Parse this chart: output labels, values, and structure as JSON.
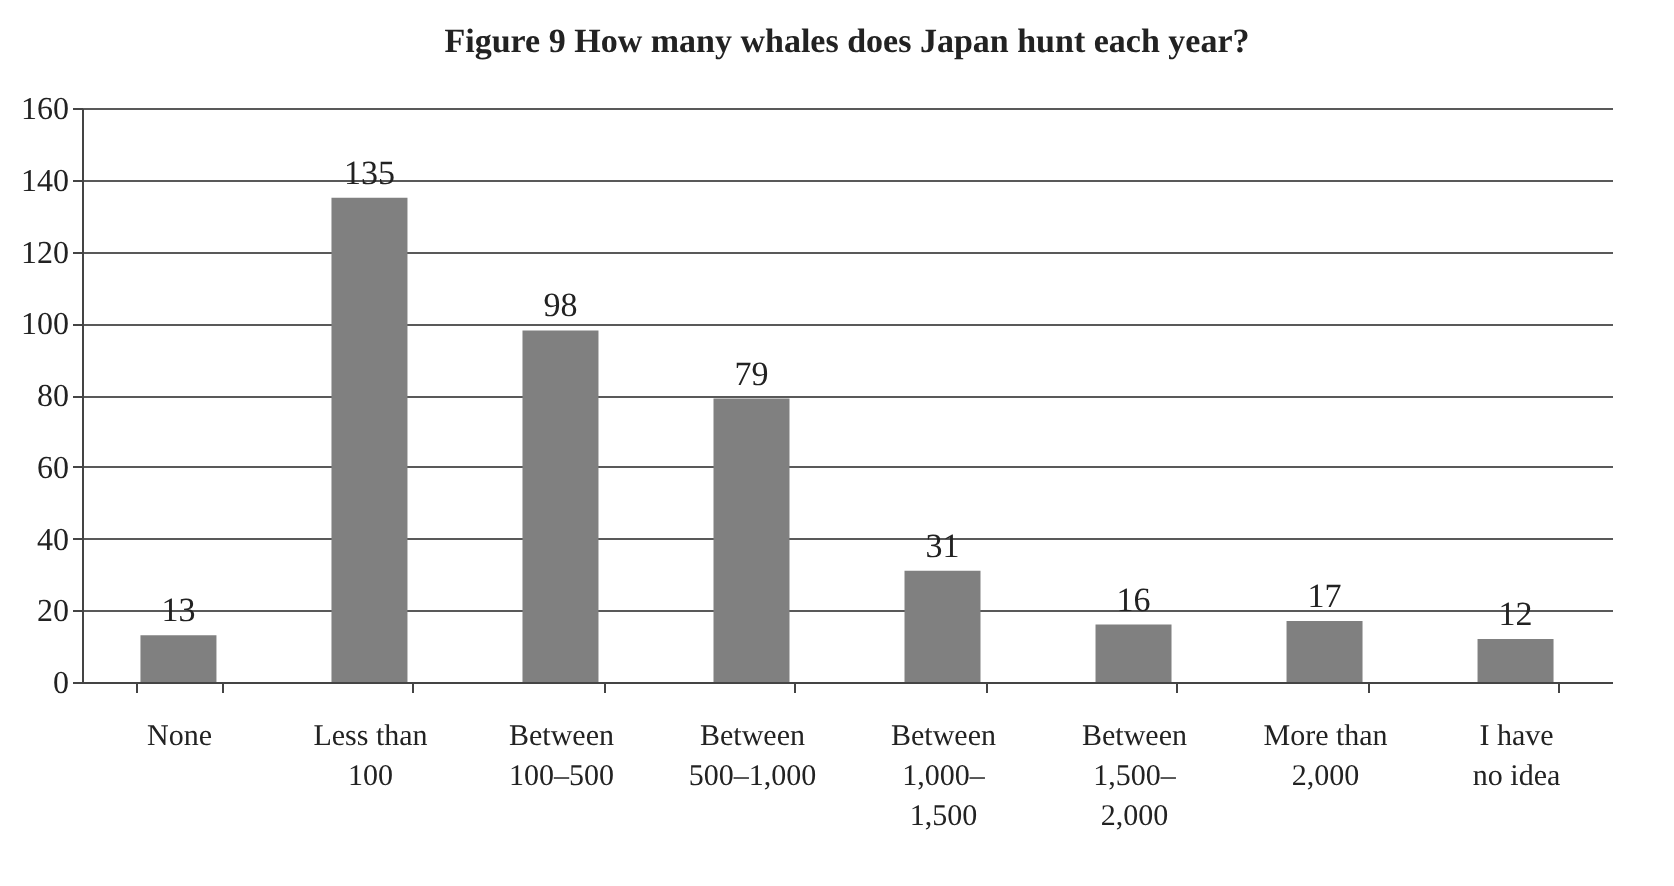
{
  "chart_data": {
    "type": "bar",
    "title": "Figure 9   How many whales does Japan hunt each year?",
    "categories": [
      "None",
      "Less than\n100",
      "Between\n100–500",
      "Between\n500–1,000",
      "Between\n1,000–\n1,500",
      "Between\n1,500–\n2,000",
      "More than\n2,000",
      "I have\nno idea"
    ],
    "values": [
      13,
      135,
      98,
      79,
      31,
      16,
      17,
      12
    ],
    "color": "#808080",
    "ylim": [
      0,
      160
    ],
    "yticks": [
      0,
      20,
      40,
      60,
      80,
      100,
      120,
      140,
      160
    ],
    "grid": "y",
    "data_labels": true
  }
}
